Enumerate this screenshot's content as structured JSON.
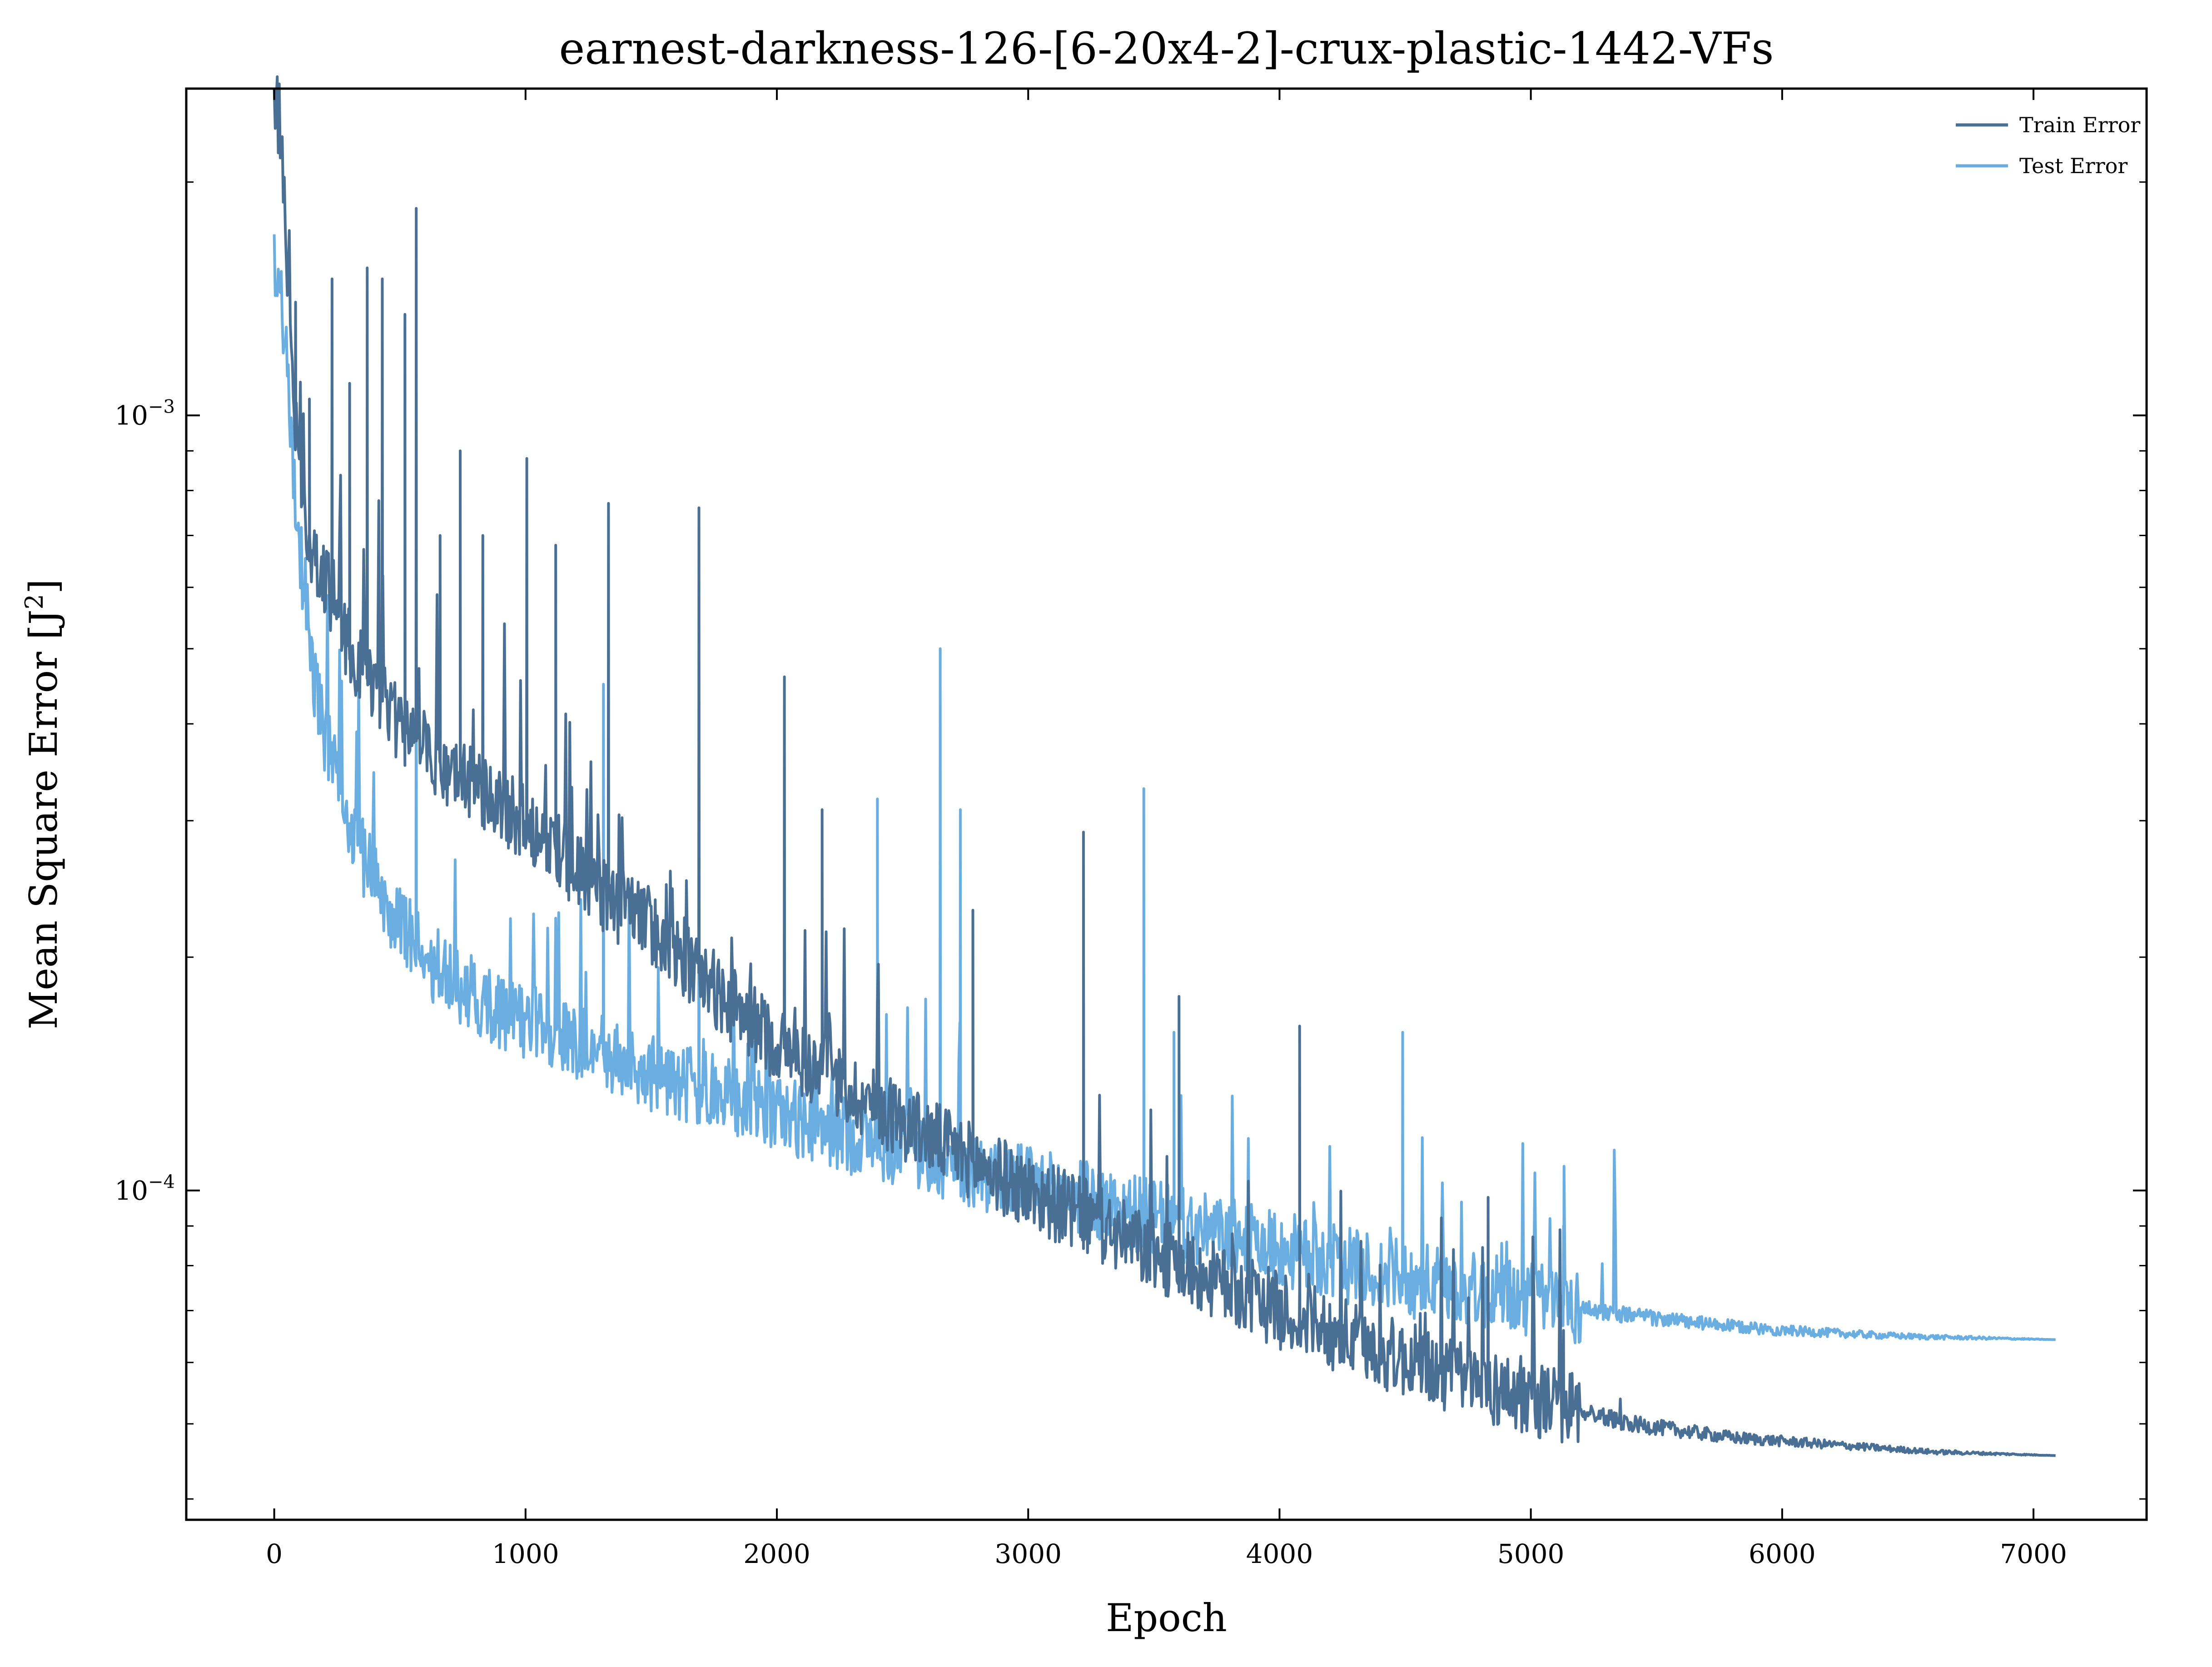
{
  "chart_data": {
    "type": "line",
    "title": "earnest-darkness-126-[6-20x4-2]-crux-plastic-1442-VFs",
    "xlabel": "Epoch",
    "ylabel_base": "Mean Square Error [J",
    "ylabel_sup": "2",
    "ylabel_tail": "]",
    "x_scale": "linear",
    "y_scale": "log",
    "xlim": [
      -350,
      7450
    ],
    "ylim": [
      3.76e-05,
      0.00264
    ],
    "x_ticks": [
      0,
      1000,
      2000,
      3000,
      4000,
      5000,
      6000,
      7000
    ],
    "x_tick_labels": [
      "0",
      "1000",
      "2000",
      "3000",
      "4000",
      "5000",
      "6000",
      "7000"
    ],
    "y_major_ticks": [
      0.001,
      0.0001
    ],
    "y_major_tick_labels": [
      {
        "base": "10",
        "exp": "−3"
      },
      {
        "base": "10",
        "exp": "−4"
      }
    ],
    "y_minor_ticks": [
      4e-05,
      5e-05,
      6e-05,
      7e-05,
      8e-05,
      9e-05,
      0.0002,
      0.0003,
      0.0004,
      0.0005,
      0.0006,
      0.0007,
      0.0008,
      0.0009,
      0.002
    ],
    "grid": false,
    "legend_position": "top-right",
    "series": [
      {
        "name": "Train Error",
        "color": "#4a6f94",
        "x": [
          0,
          20,
          40,
          60,
          80,
          100,
          130,
          160,
          200,
          250,
          300,
          350,
          400,
          450,
          500,
          600,
          700,
          800,
          900,
          1000,
          1100,
          1200,
          1300,
          1400,
          1500,
          1600,
          1700,
          1800,
          1900,
          2000,
          2200,
          2400,
          2600,
          2800,
          3000,
          3200,
          3400,
          3600,
          3800,
          4000,
          4200,
          4400,
          4600,
          4800,
          5000,
          5200,
          5400,
          5600,
          5800,
          6000,
          6200,
          6400,
          6600,
          6800,
          7000,
          7090
        ],
        "y": [
          0.0025,
          0.0024,
          0.0019,
          0.0013,
          0.001,
          0.00085,
          0.00072,
          0.00066,
          0.00062,
          0.00056,
          0.0005,
          0.00047,
          0.00044,
          0.00042,
          0.0004,
          0.00037,
          0.00035,
          0.00033,
          0.00031,
          0.0003,
          0.00028,
          0.00026,
          0.00024,
          0.00023,
          0.00022,
          0.0002,
          0.00019,
          0.000175,
          0.000165,
          0.000155,
          0.00014,
          0.000128,
          0.000118,
          0.000108,
          0.0001,
          9.3e-05,
          8.6e-05,
          8e-05,
          7.5e-05,
          7e-05,
          6.6e-05,
          6.2e-05,
          5.9e-05,
          5.6e-05,
          5.4e-05,
          5.2e-05,
          5e-05,
          4.9e-05,
          4.8e-05,
          4.75e-05,
          4.7e-05,
          4.65e-05,
          4.6e-05,
          4.58e-05,
          4.56e-05,
          4.55e-05
        ],
        "spikes": [
          {
            "x": 85,
            "y": 0.0014
          },
          {
            "x": 140,
            "y": 0.00105
          },
          {
            "x": 230,
            "y": 0.0015
          },
          {
            "x": 300,
            "y": 0.0011
          },
          {
            "x": 370,
            "y": 0.00155
          },
          {
            "x": 430,
            "y": 0.0015
          },
          {
            "x": 520,
            "y": 0.00135
          },
          {
            "x": 565,
            "y": 0.00185
          },
          {
            "x": 660,
            "y": 0.0007
          },
          {
            "x": 740,
            "y": 0.0009
          },
          {
            "x": 830,
            "y": 0.0007
          },
          {
            "x": 1005,
            "y": 0.00088
          },
          {
            "x": 1120,
            "y": 0.00068
          },
          {
            "x": 1330,
            "y": 0.00077
          },
          {
            "x": 1690,
            "y": 0.00076
          },
          {
            "x": 2030,
            "y": 0.00046
          },
          {
            "x": 2180,
            "y": 0.00031
          },
          {
            "x": 2780,
            "y": 0.00023
          },
          {
            "x": 3220,
            "y": 0.00029
          },
          {
            "x": 3600,
            "y": 0.000178
          },
          {
            "x": 4080,
            "y": 0.000163
          },
          {
            "x": 4830,
            "y": 9.8e-05
          },
          {
            "x": 5130,
            "y": 6.6e-05
          }
        ]
      },
      {
        "name": "Test Error",
        "color": "#6aade0",
        "x": [
          0,
          20,
          40,
          60,
          80,
          100,
          130,
          160,
          200,
          250,
          300,
          350,
          400,
          450,
          500,
          600,
          700,
          800,
          900,
          1000,
          1100,
          1200,
          1300,
          1400,
          1500,
          1600,
          1700,
          1800,
          1900,
          2000,
          2200,
          2400,
          2600,
          2800,
          3000,
          3200,
          3400,
          3600,
          3800,
          4000,
          4200,
          4400,
          4600,
          4800,
          5000,
          5200,
          5400,
          5600,
          5800,
          6000,
          6200,
          6400,
          6600,
          6800,
          7000,
          7090
        ],
        "y": [
          0.00155,
          0.0015,
          0.0013,
          0.001,
          0.0008,
          0.00068,
          0.00055,
          0.00045,
          0.00039,
          0.00034,
          0.0003,
          0.00027,
          0.00025,
          0.000235,
          0.00022,
          0.0002,
          0.000188,
          0.000178,
          0.00017,
          0.000165,
          0.00016,
          0.000155,
          0.00015,
          0.000146,
          0.000142,
          0.000138,
          0.000135,
          0.000132,
          0.000129,
          0.000126,
          0.00012,
          0.000115,
          0.00011,
          0.000106,
          0.000102,
          9.8e-05,
          9.4e-05,
          9e-05,
          8.7e-05,
          8.4e-05,
          8.1e-05,
          7.8e-05,
          7.6e-05,
          7.4e-05,
          7.25e-05,
          7.05e-05,
          6.9e-05,
          6.78e-05,
          6.68e-05,
          6.6e-05,
          6.55e-05,
          6.5e-05,
          6.47e-05,
          6.45e-05,
          6.43e-05,
          6.42e-05
        ],
        "spikes": [
          {
            "x": 565,
            "y": 0.00093
          },
          {
            "x": 1310,
            "y": 0.00045
          },
          {
            "x": 1690,
            "y": 0.00038
          },
          {
            "x": 2400,
            "y": 0.00032
          },
          {
            "x": 2650,
            "y": 0.0005
          },
          {
            "x": 2730,
            "y": 0.00031
          },
          {
            "x": 3460,
            "y": 0.00033
          },
          {
            "x": 3580,
            "y": 0.00016
          },
          {
            "x": 4490,
            "y": 0.00016
          },
          {
            "x": 5130,
            "y": 9e-05
          }
        ]
      }
    ]
  }
}
